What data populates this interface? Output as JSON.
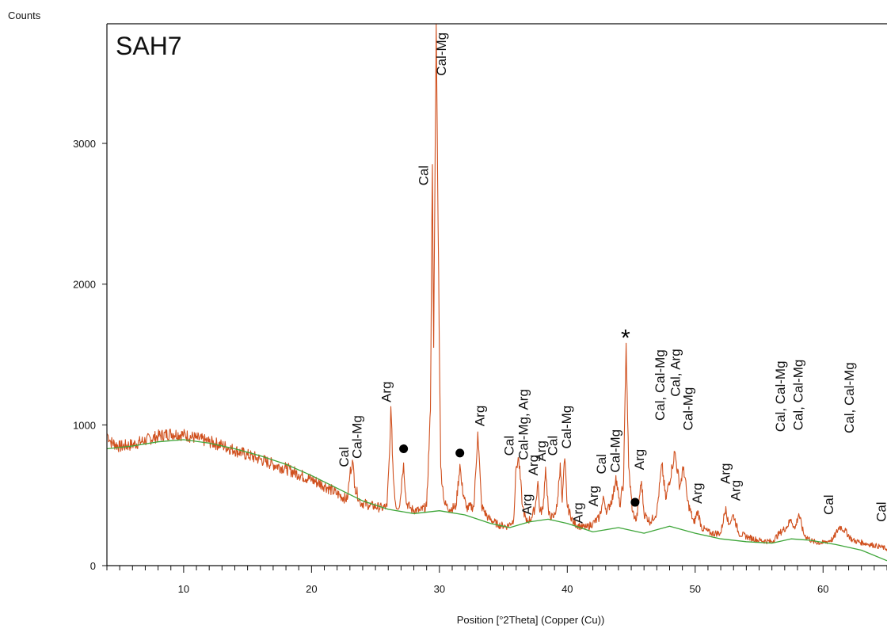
{
  "chart_data": {
    "type": "line",
    "title": "SAH7",
    "ylabel": "Counts",
    "xlabel": "Position [°2Theta] (Copper (Cu))",
    "xlim": [
      4,
      65
    ],
    "ylim": [
      0,
      3850
    ],
    "x_ticks": [
      10,
      20,
      30,
      40,
      50,
      60
    ],
    "y_ticks": [
      0,
      1000,
      2000,
      3000
    ],
    "grid": false,
    "series": [
      {
        "role": "measured",
        "color": "#D0501E",
        "points": [
          [
            4.0,
            940
          ],
          [
            4.3,
            880
          ],
          [
            5,
            845
          ],
          [
            6,
            860
          ],
          [
            7,
            890
          ],
          [
            8,
            920
          ],
          [
            9,
            940
          ],
          [
            10,
            930
          ],
          [
            11,
            905
          ],
          [
            12,
            880
          ],
          [
            13,
            855
          ],
          [
            14,
            820
          ],
          [
            15,
            785
          ],
          [
            16,
            755
          ],
          [
            17,
            720
          ],
          [
            18,
            690
          ],
          [
            19,
            650
          ],
          [
            20,
            610
          ],
          [
            21,
            570
          ],
          [
            22,
            510
          ],
          [
            22.8,
            470
          ],
          [
            23.0,
            650
          ],
          [
            23.2,
            750
          ],
          [
            23.4,
            560
          ],
          [
            23.8,
            450
          ],
          [
            24.5,
            430
          ],
          [
            25.5,
            410
          ],
          [
            25.9,
            420
          ],
          [
            26.1,
            800
          ],
          [
            26.2,
            1130
          ],
          [
            26.4,
            620
          ],
          [
            26.6,
            420
          ],
          [
            26.9,
            430
          ],
          [
            27.1,
            640
          ],
          [
            27.2,
            730
          ],
          [
            27.4,
            450
          ],
          [
            27.8,
            400
          ],
          [
            28.5,
            390
          ],
          [
            29.0,
            420
          ],
          [
            29.3,
            1100
          ],
          [
            29.45,
            2850
          ],
          [
            29.55,
            1550
          ],
          [
            29.75,
            3850
          ],
          [
            29.9,
            2400
          ],
          [
            30.1,
            700
          ],
          [
            30.4,
            440
          ],
          [
            30.8,
            400
          ],
          [
            31.3,
            420
          ],
          [
            31.6,
            720
          ],
          [
            31.75,
            570
          ],
          [
            32.1,
            410
          ],
          [
            32.7,
            420
          ],
          [
            33.0,
            950
          ],
          [
            33.3,
            420
          ],
          [
            33.8,
            340
          ],
          [
            34.6,
            290
          ],
          [
            35.3,
            280
          ],
          [
            35.8,
            320
          ],
          [
            36.0,
            700
          ],
          [
            36.2,
            760
          ],
          [
            36.5,
            420
          ],
          [
            36.8,
            310
          ],
          [
            37.2,
            340
          ],
          [
            37.5,
            420
          ],
          [
            37.7,
            600
          ],
          [
            37.85,
            380
          ],
          [
            38.1,
            400
          ],
          [
            38.3,
            700
          ],
          [
            38.55,
            360
          ],
          [
            38.9,
            340
          ],
          [
            39.2,
            420
          ],
          [
            39.45,
            730
          ],
          [
            39.6,
            450
          ],
          [
            39.8,
            760
          ],
          [
            40.0,
            420
          ],
          [
            40.5,
            300
          ],
          [
            41.0,
            280
          ],
          [
            41.5,
            270
          ],
          [
            42.0,
            300
          ],
          [
            42.5,
            340
          ],
          [
            42.85,
            480
          ],
          [
            43.1,
            380
          ],
          [
            43.6,
            500
          ],
          [
            43.8,
            640
          ],
          [
            44.1,
            420
          ],
          [
            44.4,
            600
          ],
          [
            44.6,
            1580
          ],
          [
            44.8,
            700
          ],
          [
            45.1,
            380
          ],
          [
            45.4,
            320
          ],
          [
            45.8,
            600
          ],
          [
            46.0,
            370
          ],
          [
            46.5,
            310
          ],
          [
            47.0,
            380
          ],
          [
            47.4,
            720
          ],
          [
            47.7,
            470
          ],
          [
            48.2,
            700
          ],
          [
            48.4,
            810
          ],
          [
            48.8,
            560
          ],
          [
            49.1,
            700
          ],
          [
            49.4,
            460
          ],
          [
            49.9,
            300
          ],
          [
            50.2,
            390
          ],
          [
            50.5,
            270
          ],
          [
            51.2,
            230
          ],
          [
            52.0,
            230
          ],
          [
            52.4,
            420
          ],
          [
            52.6,
            290
          ],
          [
            53.0,
            360
          ],
          [
            53.4,
            230
          ],
          [
            54.2,
            200
          ],
          [
            55.0,
            180
          ],
          [
            56.0,
            170
          ],
          [
            56.6,
            230
          ],
          [
            57.2,
            280
          ],
          [
            57.5,
            330
          ],
          [
            57.8,
            260
          ],
          [
            58.1,
            370
          ],
          [
            58.5,
            220
          ],
          [
            59.2,
            170
          ],
          [
            60.0,
            160
          ],
          [
            60.8,
            190
          ],
          [
            61.3,
            280
          ],
          [
            61.7,
            250
          ],
          [
            62.3,
            180
          ],
          [
            63.2,
            160
          ],
          [
            64.2,
            140
          ],
          [
            65.0,
            120
          ]
        ]
      },
      {
        "role": "background",
        "color": "#3FA63A",
        "points": [
          [
            4,
            830
          ],
          [
            6,
            850
          ],
          [
            8,
            880
          ],
          [
            10,
            895
          ],
          [
            12,
            870
          ],
          [
            14,
            830
          ],
          [
            16,
            780
          ],
          [
            18,
            720
          ],
          [
            20,
            640
          ],
          [
            22,
            550
          ],
          [
            24,
            460
          ],
          [
            26,
            400
          ],
          [
            28,
            370
          ],
          [
            30,
            390
          ],
          [
            32,
            360
          ],
          [
            34,
            300
          ],
          [
            35.5,
            270
          ],
          [
            37,
            310
          ],
          [
            38.5,
            330
          ],
          [
            40,
            300
          ],
          [
            42,
            240
          ],
          [
            44,
            270
          ],
          [
            46,
            230
          ],
          [
            48,
            280
          ],
          [
            50,
            230
          ],
          [
            52,
            190
          ],
          [
            54,
            170
          ],
          [
            56,
            160
          ],
          [
            57.5,
            190
          ],
          [
            59,
            180
          ],
          [
            61,
            150
          ],
          [
            63,
            110
          ],
          [
            65,
            35
          ]
        ]
      }
    ],
    "peak_labels": [
      {
        "x": 22.9,
        "y": 700,
        "text": "Cal"
      },
      {
        "x": 23.9,
        "y": 760,
        "text": "Cal-Mg"
      },
      {
        "x": 26.2,
        "y": 1160,
        "text": "Arg"
      },
      {
        "x": 29.1,
        "y": 2700,
        "text": "Cal"
      },
      {
        "x": 30.5,
        "y": 3480,
        "text": "Cal-Mg"
      },
      {
        "x": 33.5,
        "y": 990,
        "text": "Arg"
      },
      {
        "x": 35.8,
        "y": 780,
        "text": "Cal"
      },
      {
        "x": 36.9,
        "y": 750,
        "text": "Cal-Mg, Arg"
      },
      {
        "x": 37.2,
        "y": 360,
        "text": "Arg"
      },
      {
        "x": 37.7,
        "y": 640,
        "text": "Arg"
      },
      {
        "x": 38.3,
        "y": 740,
        "text": "Arg"
      },
      {
        "x": 39.2,
        "y": 780,
        "text": "Cal"
      },
      {
        "x": 40.3,
        "y": 830,
        "text": "Cal-Mg"
      },
      {
        "x": 41.2,
        "y": 300,
        "text": "Arg"
      },
      {
        "x": 42.4,
        "y": 420,
        "text": "Arg"
      },
      {
        "x": 43.0,
        "y": 650,
        "text": "Cal"
      },
      {
        "x": 44.1,
        "y": 660,
        "text": "Cal-Mg"
      },
      {
        "x": 46.0,
        "y": 680,
        "text": "Arg"
      },
      {
        "x": 47.6,
        "y": 1030,
        "text": "Cal, Cal-Mg"
      },
      {
        "x": 48.8,
        "y": 1200,
        "text": "Cal, Arg"
      },
      {
        "x": 49.8,
        "y": 960,
        "text": "Cal-Mg"
      },
      {
        "x": 50.5,
        "y": 440,
        "text": "Arg"
      },
      {
        "x": 52.7,
        "y": 580,
        "text": "Arg"
      },
      {
        "x": 53.5,
        "y": 460,
        "text": "Arg"
      },
      {
        "x": 57.0,
        "y": 950,
        "text": "Cal, Cal-Mg"
      },
      {
        "x": 58.4,
        "y": 960,
        "text": "Cal, Cal-Mg"
      },
      {
        "x": 60.8,
        "y": 360,
        "text": "Cal"
      },
      {
        "x": 62.4,
        "y": 940,
        "text": "Cal, Cal-Mg"
      },
      {
        "x": 64.9,
        "y": 310,
        "text": "Cal"
      }
    ],
    "markers": [
      {
        "x": 27.2,
        "y": 830,
        "symbol": "dot"
      },
      {
        "x": 31.6,
        "y": 800,
        "symbol": "dot"
      },
      {
        "x": 44.55,
        "y": 1640,
        "symbol": "asterisk"
      },
      {
        "x": 45.3,
        "y": 450,
        "symbol": "dot"
      }
    ]
  }
}
